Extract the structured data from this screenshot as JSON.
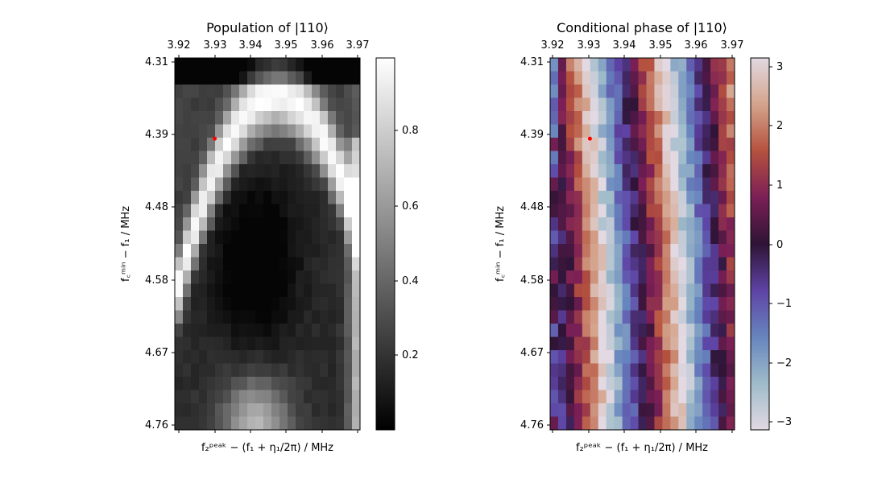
{
  "chart_data": [
    {
      "type": "heatmap",
      "title": "Population of |110⟩",
      "colormap": "gray",
      "xlabel": "f₂ᵖᵉᵃᵏ − (f₁ + η₁/2π) / MHz",
      "ylabel": "f꜀ᵐⁱⁿ − f₁ / MHz",
      "x_ticks": [
        "3.92",
        "3.93",
        "3.94",
        "3.95",
        "3.96",
        "3.97"
      ],
      "y_ticks": [
        "4.31",
        "4.39",
        "4.48",
        "4.58",
        "4.67",
        "4.76"
      ],
      "xlim": [
        3.919,
        3.97
      ],
      "ylim": [
        4.76,
        4.31
      ],
      "colorbar_range": [
        0.0,
        1.0
      ],
      "colorbar_ticks": [
        "0.2",
        "0.4",
        "0.6",
        "0.8"
      ],
      "grid": {
        "nx": 23,
        "ny": 28
      },
      "marker": {
        "x": 3.93,
        "y": 4.405,
        "color": "#ff0000"
      },
      "pattern": "bright parabolic arc peaking near x=3.945 at top, dark core centred near x=3.942, y=4.55"
    },
    {
      "type": "heatmap",
      "title": "Conditional phase of |110⟩",
      "colormap": "twilight_shifted",
      "xlabel": "f₂ᵖᵉᵃᵏ − (f₁ + η₁/2π) / MHz",
      "ylabel": "f꜀ᵐⁱⁿ − f₁ / MHz",
      "x_ticks": [
        "3.92",
        "3.93",
        "3.94",
        "3.95",
        "3.96",
        "3.97"
      ],
      "y_ticks": [
        "4.31",
        "4.39",
        "4.48",
        "4.58",
        "4.67",
        "4.76"
      ],
      "xlim": [
        3.919,
        3.97
      ],
      "ylim": [
        4.76,
        4.31
      ],
      "colorbar_range": [
        -3.14,
        3.14
      ],
      "colorbar_ticks": [
        "3",
        "2",
        "1",
        "0",
        "−1",
        "−2",
        "−3"
      ],
      "grid": {
        "nx": 23,
        "ny": 28
      },
      "marker": {
        "x": 3.93,
        "y": 4.405,
        "color": "#ff0000"
      },
      "pattern": "diagonal phase bands from dark-purple through brown to light, bending near y=4.55"
    }
  ]
}
